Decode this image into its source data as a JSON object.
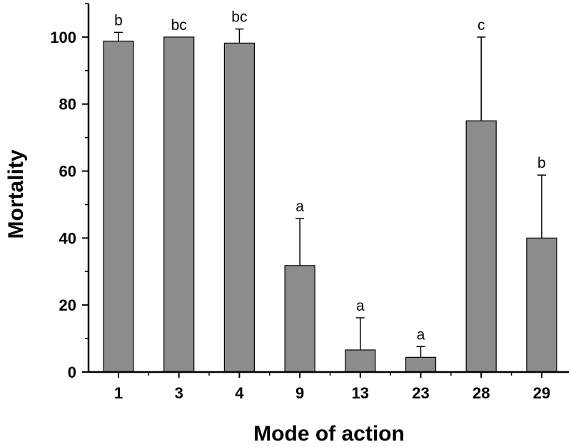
{
  "chart_data": {
    "type": "bar",
    "title": "",
    "xlabel": "Mode of action",
    "ylabel": "Mortality",
    "categories": [
      "1",
      "3",
      "4",
      "9",
      "13",
      "23",
      "28",
      "29"
    ],
    "series": [
      {
        "values": [
          98.8,
          100,
          98.2,
          31.8,
          6.6,
          4.4,
          75,
          40
        ],
        "error_upper": [
          2.6,
          0,
          4.2,
          14,
          9.6,
          3.2,
          25,
          18.8
        ],
        "labels": [
          "b",
          "bc",
          "bc",
          "a",
          "a",
          "a",
          "c",
          "b"
        ]
      }
    ],
    "ylim": [
      0,
      110
    ],
    "yticks": [
      0,
      20,
      40,
      60,
      80,
      100
    ],
    "grid": false,
    "legend": "none",
    "bar_color": "#8c8c8c",
    "bar_edge_color": "#000000"
  }
}
